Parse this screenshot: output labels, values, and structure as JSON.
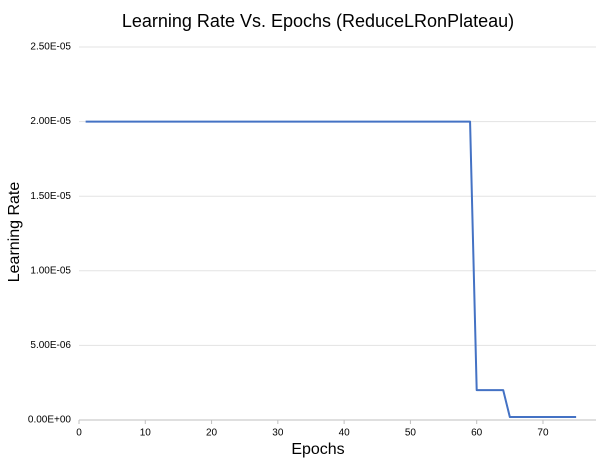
{
  "chart_data": {
    "type": "line",
    "title": "Learning Rate Vs. Epochs (ReduceLRonPlateau)",
    "x_label": "Epochs",
    "y_label": "Learning Rate",
    "x": [
      1,
      2,
      3,
      4,
      5,
      6,
      7,
      8,
      9,
      10,
      11,
      12,
      13,
      14,
      15,
      16,
      17,
      18,
      19,
      20,
      21,
      22,
      23,
      24,
      25,
      26,
      27,
      28,
      29,
      30,
      31,
      32,
      33,
      34,
      35,
      36,
      37,
      38,
      39,
      40,
      41,
      42,
      43,
      44,
      45,
      46,
      47,
      48,
      49,
      50,
      51,
      52,
      53,
      54,
      55,
      56,
      57,
      58,
      59,
      60,
      61,
      62,
      63,
      64,
      65,
      66,
      67,
      68,
      69,
      70,
      71,
      72,
      73,
      74,
      75
    ],
    "series": [
      {
        "name": "Learning Rate",
        "color": "#4472c4",
        "values": [
          2e-05,
          2e-05,
          2e-05,
          2e-05,
          2e-05,
          2e-05,
          2e-05,
          2e-05,
          2e-05,
          2e-05,
          2e-05,
          2e-05,
          2e-05,
          2e-05,
          2e-05,
          2e-05,
          2e-05,
          2e-05,
          2e-05,
          2e-05,
          2e-05,
          2e-05,
          2e-05,
          2e-05,
          2e-05,
          2e-05,
          2e-05,
          2e-05,
          2e-05,
          2e-05,
          2e-05,
          2e-05,
          2e-05,
          2e-05,
          2e-05,
          2e-05,
          2e-05,
          2e-05,
          2e-05,
          2e-05,
          2e-05,
          2e-05,
          2e-05,
          2e-05,
          2e-05,
          2e-05,
          2e-05,
          2e-05,
          2e-05,
          2e-05,
          2e-05,
          2e-05,
          2e-05,
          2e-05,
          2e-05,
          2e-05,
          2e-05,
          2e-05,
          2e-05,
          2e-06,
          2e-06,
          2e-06,
          2e-06,
          2e-06,
          2e-07,
          2e-07,
          2e-07,
          2e-07,
          2e-07,
          2e-07,
          2e-07,
          2e-07,
          2e-07,
          2e-07,
          2e-07
        ]
      }
    ],
    "xlim": [
      0,
      78
    ],
    "xticks": [
      0,
      10,
      20,
      30,
      40,
      50,
      60,
      70
    ],
    "ylim": [
      0,
      2.5e-05
    ],
    "yticks": [
      {
        "value": 0,
        "label": "0.00E+00"
      },
      {
        "value": 5e-06,
        "label": "5.00E-06"
      },
      {
        "value": 1e-05,
        "label": "1.00E-05"
      },
      {
        "value": 1.5e-05,
        "label": "1.50E-05"
      },
      {
        "value": 2e-05,
        "label": "2.00E-05"
      },
      {
        "value": 2.5e-05,
        "label": "2.50E-05"
      }
    ],
    "grid": true
  }
}
